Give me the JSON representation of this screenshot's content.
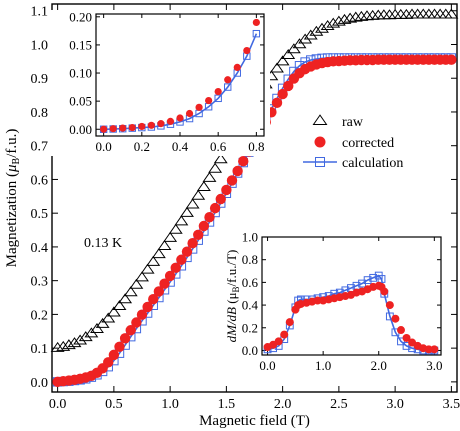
{
  "chart_data": [
    {
      "type": "scatter",
      "xlabel": "Magnetic field  (T)",
      "ylabel": "Magnetization (",
      "ylabel_mu": "μ",
      "ylabel_sub": "B",
      "ylabel_tail": "/f.u.)",
      "xlim": [
        -0.05,
        3.55
      ],
      "ylim": [
        -0.03,
        1.12
      ],
      "xticks": [
        0,
        0.5,
        1,
        1.5,
        2,
        2.5,
        3,
        3.5
      ],
      "xtick_labels": [
        "0.0",
        "0.5",
        "1.0",
        "1.5",
        "2.0",
        "2.5",
        "3.0",
        "3.5"
      ],
      "yticks": [
        0,
        0.1,
        0.2,
        0.3,
        0.4,
        0.5,
        0.6,
        0.7,
        0.8,
        0.9,
        1.0,
        1.1
      ],
      "ytick_labels": [
        "0.0",
        "0.1",
        "0.2",
        "0.3",
        "0.4",
        "0.5",
        "0.6",
        "0.7",
        "0.8",
        "0.9",
        "1.0",
        "1.1"
      ],
      "annotation": "0.13 K",
      "legend": {
        "placement": "right",
        "entries": [
          {
            "label": "raw",
            "marker": "triangle-open",
            "color": "#000000"
          },
          {
            "label": "corrected",
            "marker": "circle-filled",
            "color": "#ee2222"
          },
          {
            "label": "calculation",
            "marker": "square-open-line",
            "color": "#4169e1"
          }
        ]
      },
      "series": [
        {
          "name": "raw",
          "x": [
            0.0,
            0.05,
            0.1,
            0.15,
            0.2,
            0.25,
            0.3,
            0.35,
            0.4,
            0.45,
            0.5,
            0.55,
            0.6,
            0.65,
            0.7,
            0.75,
            0.8,
            0.85,
            0.9,
            0.95,
            1.0,
            1.05,
            1.1,
            1.15,
            1.2,
            1.25,
            1.3,
            1.35,
            1.4,
            1.45,
            1.5,
            1.55,
            1.6,
            1.65,
            1.7,
            1.75,
            1.8,
            1.85,
            1.9,
            1.95,
            2.0,
            2.05,
            2.1,
            2.15,
            2.2,
            2.25,
            2.3,
            2.35,
            2.4,
            2.45,
            2.5,
            2.55,
            2.6,
            2.65,
            2.7,
            2.75,
            2.8,
            2.85,
            2.9,
            2.95,
            3.0,
            3.05,
            3.1,
            3.15,
            3.2,
            3.25,
            3.3,
            3.35,
            3.4,
            3.45,
            3.5
          ],
          "y": [
            0.1,
            0.103,
            0.108,
            0.114,
            0.122,
            0.132,
            0.143,
            0.156,
            0.171,
            0.187,
            0.205,
            0.224,
            0.244,
            0.265,
            0.287,
            0.309,
            0.332,
            0.355,
            0.378,
            0.402,
            0.426,
            0.45,
            0.475,
            0.5,
            0.525,
            0.551,
            0.577,
            0.604,
            0.631,
            0.659,
            0.687,
            0.715,
            0.744,
            0.772,
            0.8,
            0.828,
            0.855,
            0.881,
            0.905,
            0.928,
            0.949,
            0.968,
            0.985,
            1.0,
            1.014,
            1.026,
            1.037,
            1.046,
            1.054,
            1.061,
            1.067,
            1.072,
            1.076,
            1.079,
            1.081,
            1.083,
            1.084,
            1.085,
            1.086,
            1.086,
            1.087,
            1.087,
            1.087,
            1.088,
            1.088,
            1.088,
            1.088,
            1.088,
            1.088,
            1.088,
            1.088
          ]
        },
        {
          "name": "corrected",
          "x": [
            0.0,
            0.05,
            0.1,
            0.15,
            0.2,
            0.25,
            0.3,
            0.35,
            0.4,
            0.45,
            0.5,
            0.55,
            0.6,
            0.65,
            0.7,
            0.75,
            0.8,
            0.85,
            0.9,
            0.95,
            1.0,
            1.05,
            1.1,
            1.15,
            1.2,
            1.25,
            1.3,
            1.35,
            1.4,
            1.45,
            1.5,
            1.55,
            1.6,
            1.65,
            1.7,
            1.75,
            1.8,
            1.85,
            1.9,
            1.95,
            2.0,
            2.05,
            2.1,
            2.15,
            2.2,
            2.25,
            2.3,
            2.35,
            2.4,
            2.45,
            2.5,
            2.55,
            2.6,
            2.65,
            2.7,
            2.75,
            2.8,
            2.85,
            2.9,
            2.95,
            3.0,
            3.05,
            3.1,
            3.15,
            3.2,
            3.25,
            3.3,
            3.35,
            3.4,
            3.45,
            3.5
          ],
          "y": [
            0.0,
            0.002,
            0.004,
            0.006,
            0.009,
            0.013,
            0.018,
            0.027,
            0.04,
            0.058,
            0.08,
            0.104,
            0.129,
            0.153,
            0.176,
            0.199,
            0.222,
            0.245,
            0.268,
            0.291,
            0.314,
            0.338,
            0.362,
            0.386,
            0.411,
            0.436,
            0.462,
            0.488,
            0.515,
            0.542,
            0.569,
            0.597,
            0.625,
            0.654,
            0.683,
            0.712,
            0.741,
            0.77,
            0.799,
            0.827,
            0.853,
            0.877,
            0.899,
            0.915,
            0.927,
            0.935,
            0.941,
            0.945,
            0.948,
            0.95,
            0.951,
            0.952,
            0.953,
            0.953,
            0.954,
            0.954,
            0.954,
            0.955,
            0.955,
            0.955,
            0.955,
            0.955,
            0.955,
            0.955,
            0.955,
            0.955,
            0.955,
            0.955,
            0.955,
            0.955,
            0.955
          ]
        },
        {
          "name": "calculation",
          "x": [
            0.0,
            0.05,
            0.1,
            0.15,
            0.2,
            0.25,
            0.3,
            0.35,
            0.4,
            0.45,
            0.5,
            0.55,
            0.6,
            0.65,
            0.7,
            0.75,
            0.8,
            0.85,
            0.9,
            0.95,
            1.0,
            1.05,
            1.1,
            1.15,
            1.2,
            1.25,
            1.3,
            1.35,
            1.4,
            1.45,
            1.5,
            1.55,
            1.6,
            1.65,
            1.7,
            1.75,
            1.8,
            1.85,
            1.9,
            1.95,
            2.0,
            2.05,
            2.1,
            2.15,
            2.2,
            2.25,
            2.3,
            2.35,
            2.4,
            2.45,
            2.5,
            2.55,
            2.6,
            2.65,
            2.7,
            2.75,
            2.8,
            2.85,
            2.9,
            2.95,
            3.0,
            3.05,
            3.1,
            3.15,
            3.2,
            3.25,
            3.3,
            3.35,
            3.4,
            3.45,
            3.5
          ],
          "y": [
            0.0,
            0.001,
            0.002,
            0.004,
            0.006,
            0.009,
            0.014,
            0.021,
            0.031,
            0.045,
            0.063,
            0.085,
            0.109,
            0.134,
            0.158,
            0.181,
            0.204,
            0.227,
            0.25,
            0.273,
            0.296,
            0.32,
            0.344,
            0.369,
            0.394,
            0.42,
            0.447,
            0.474,
            0.502,
            0.53,
            0.559,
            0.589,
            0.619,
            0.65,
            0.681,
            0.713,
            0.745,
            0.777,
            0.809,
            0.84,
            0.87,
            0.897,
            0.92,
            0.937,
            0.948,
            0.954,
            0.957,
            0.959,
            0.96,
            0.96,
            0.96,
            0.96,
            0.96,
            0.96,
            0.96,
            0.96,
            0.96,
            0.96,
            0.96,
            0.96,
            0.96,
            0.96,
            0.96,
            0.96,
            0.96,
            0.96,
            0.96,
            0.96,
            0.96,
            0.96,
            0.96
          ]
        }
      ]
    },
    {
      "type": "scatter",
      "xlim": [
        -0.04,
        0.84
      ],
      "ylim": [
        -0.012,
        0.205
      ],
      "xticks": [
        0,
        0.2,
        0.4,
        0.6,
        0.8
      ],
      "xtick_labels": [
        "0.0",
        "0.2",
        "0.4",
        "0.6",
        "0.8"
      ],
      "yticks": [
        0,
        0.05,
        0.1,
        0.15,
        0.2
      ],
      "ytick_labels": [
        "0.00",
        "0.05",
        "0.10",
        "0.15",
        "0.20"
      ],
      "series": [
        {
          "name": "corrected",
          "x": [
            0.0,
            0.05,
            0.1,
            0.15,
            0.2,
            0.25,
            0.3,
            0.35,
            0.4,
            0.45,
            0.5,
            0.55,
            0.6,
            0.65,
            0.7,
            0.75,
            0.8
          ],
          "y": [
            0.0,
            0.001,
            0.002,
            0.003,
            0.005,
            0.007,
            0.01,
            0.014,
            0.02,
            0.028,
            0.039,
            0.051,
            0.067,
            0.088,
            0.11,
            0.14,
            0.19
          ]
        },
        {
          "name": "calculation",
          "x": [
            0.0,
            0.05,
            0.1,
            0.15,
            0.2,
            0.25,
            0.3,
            0.35,
            0.4,
            0.45,
            0.5,
            0.55,
            0.6,
            0.65,
            0.7,
            0.75,
            0.8
          ],
          "y": [
            0.0,
            0.0005,
            0.001,
            0.002,
            0.003,
            0.004,
            0.006,
            0.009,
            0.013,
            0.019,
            0.028,
            0.04,
            0.055,
            0.075,
            0.1,
            0.13,
            0.17
          ]
        }
      ]
    },
    {
      "type": "scatter",
      "ylabel_main": "dM/dB",
      "ylabel_unit_open": "(μ",
      "ylabel_unit_sub": "B",
      "ylabel_unit_tail": "/f.u./T)",
      "xlim": [
        -0.1,
        3.12
      ],
      "ylim": [
        -0.04,
        1.0
      ],
      "xticks": [
        0,
        1,
        2,
        3
      ],
      "xtick_labels": [
        "0.0",
        "1.0",
        "2.0",
        "3.0"
      ],
      "yticks": [
        0,
        0.2,
        0.4,
        0.6,
        0.8,
        1.0
      ],
      "ytick_labels": [
        "0.0",
        "0.2",
        "0.4",
        "0.6",
        "0.8",
        "1.0"
      ],
      "series": [
        {
          "name": "corrected",
          "x": [
            0.0,
            0.1,
            0.2,
            0.3,
            0.4,
            0.5,
            0.55,
            0.6,
            0.7,
            0.8,
            0.9,
            1.0,
            1.1,
            1.2,
            1.3,
            1.4,
            1.5,
            1.6,
            1.7,
            1.8,
            1.9,
            2.0,
            2.05,
            2.1,
            2.2,
            2.3,
            2.4,
            2.5,
            2.6,
            2.7,
            2.8,
            2.9,
            3.0
          ],
          "y": [
            0.03,
            0.05,
            0.08,
            0.14,
            0.25,
            0.36,
            0.4,
            0.41,
            0.42,
            0.43,
            0.44,
            0.44,
            0.45,
            0.46,
            0.47,
            0.48,
            0.49,
            0.51,
            0.52,
            0.54,
            0.56,
            0.57,
            0.56,
            0.52,
            0.4,
            0.28,
            0.18,
            0.11,
            0.07,
            0.04,
            0.02,
            0.01,
            0.01
          ]
        },
        {
          "name": "calculation",
          "x": [
            0.0,
            0.1,
            0.2,
            0.3,
            0.4,
            0.5,
            0.55,
            0.6,
            0.7,
            0.8,
            0.9,
            1.0,
            1.1,
            1.2,
            1.3,
            1.4,
            1.5,
            1.6,
            1.7,
            1.8,
            1.9,
            2.0,
            2.05,
            2.1,
            2.2,
            2.3,
            2.4,
            2.5,
            2.6,
            2.7,
            2.8,
            2.9,
            3.0
          ],
          "y": [
            0.01,
            0.02,
            0.04,
            0.1,
            0.22,
            0.38,
            0.44,
            0.45,
            0.45,
            0.45,
            0.46,
            0.47,
            0.48,
            0.5,
            0.51,
            0.53,
            0.55,
            0.57,
            0.59,
            0.62,
            0.64,
            0.66,
            0.63,
            0.5,
            0.3,
            0.16,
            0.08,
            0.04,
            0.02,
            0.01,
            0.0,
            0.0,
            0.0
          ]
        }
      ]
    }
  ]
}
